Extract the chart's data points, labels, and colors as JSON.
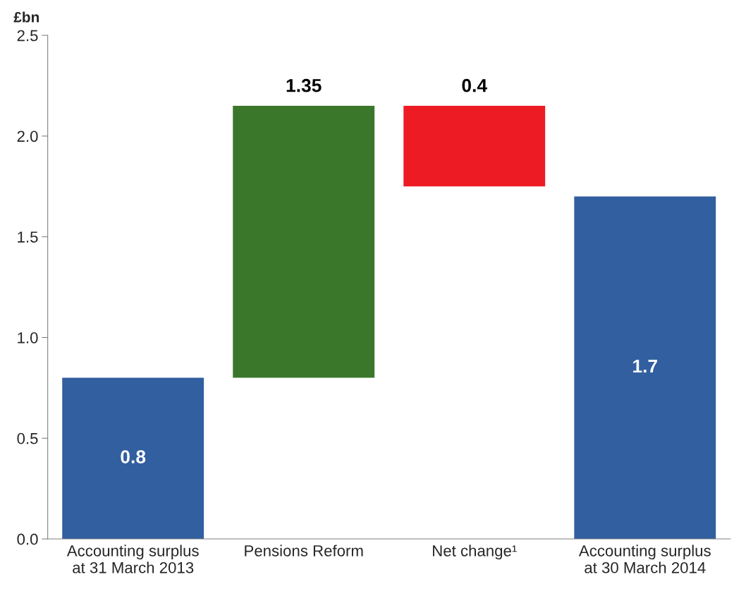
{
  "chart_data": {
    "type": "bar",
    "ylabel": "£bn",
    "categories": [
      "Accounting surplus\nat 31 March 2013",
      "Pensions Reform",
      "Net change¹",
      "Accounting surplus\nat 30 March 2014"
    ],
    "values": [
      0.8,
      1.35,
      -0.4,
      1.7
    ],
    "base": [
      0,
      0.8,
      2.15,
      0
    ],
    "colors": [
      "#315f9f",
      "#3b772a",
      "#ed1c24",
      "#315f9f"
    ],
    "value_labels": [
      "0.8",
      "1.35",
      "0.4",
      "1.7"
    ],
    "ylim": [
      0,
      2.5
    ],
    "yticks": [
      {
        "value": 0,
        "label": "0.0"
      },
      {
        "value": 0.5,
        "label": "0.5"
      },
      {
        "value": 1,
        "label": "1.0"
      },
      {
        "value": 1.5,
        "label": "1.5"
      },
      {
        "value": 2,
        "label": "2.0"
      },
      {
        "value": 2.5,
        "label": "2.5"
      }
    ],
    "grid": false,
    "legend": false
  }
}
